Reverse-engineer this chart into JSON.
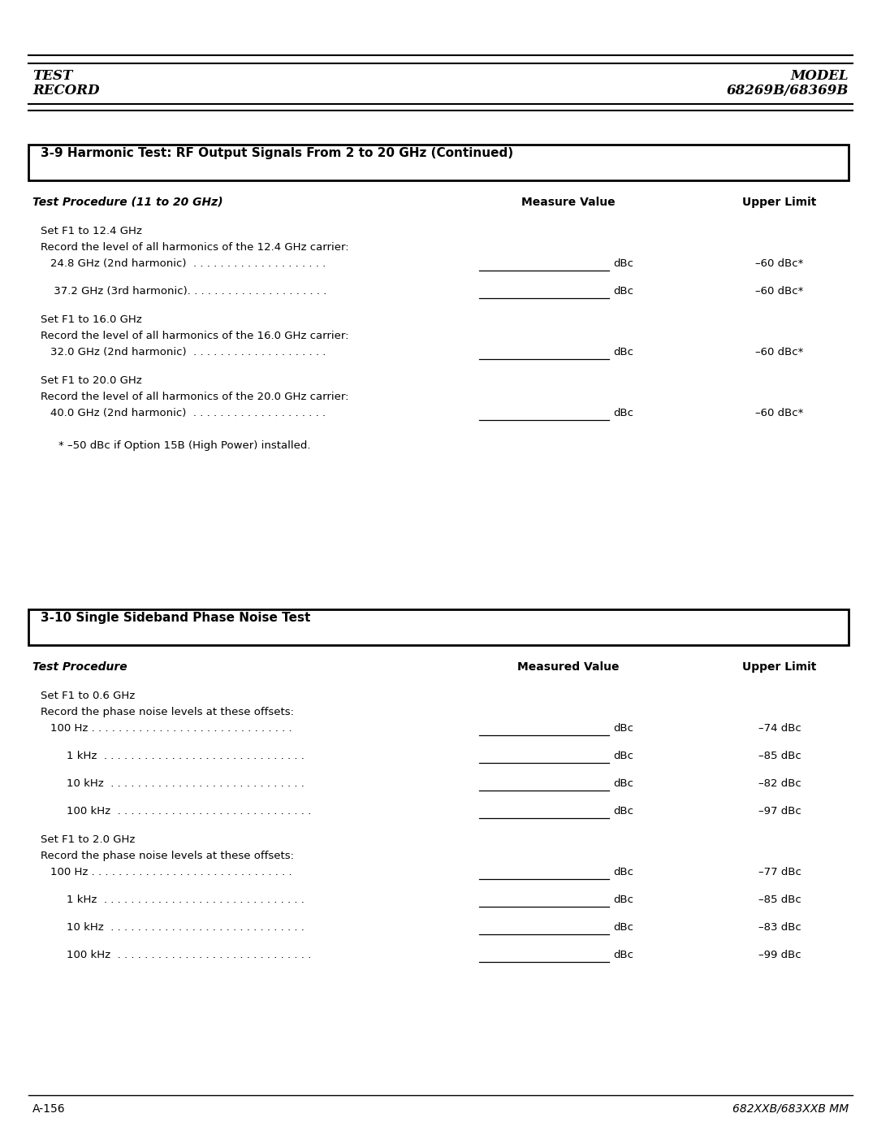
{
  "page_title_left1": "TEST",
  "page_title_left2": "RECORD",
  "page_title_right1": "MODEL",
  "page_title_right2": "68269B/68369B",
  "section1_title": "3-9 Harmonic Test: RF Output Signals From 2 to 20 GHz (Continued)",
  "section1_col1": "Test Procedure (11 to 20 GHz)",
  "section1_col2": "Measure Value",
  "section1_col3": "Upper Limit",
  "section2_title": "3-10 Single Sideband Phase Noise Test",
  "section2_col1": "Test Procedure",
  "section2_col2": "Measured Value",
  "section2_col3": "Upper Limit",
  "footer_left": "A-156",
  "footer_right": "682XXB/683XXB MM",
  "bg_color": "#ffffff"
}
